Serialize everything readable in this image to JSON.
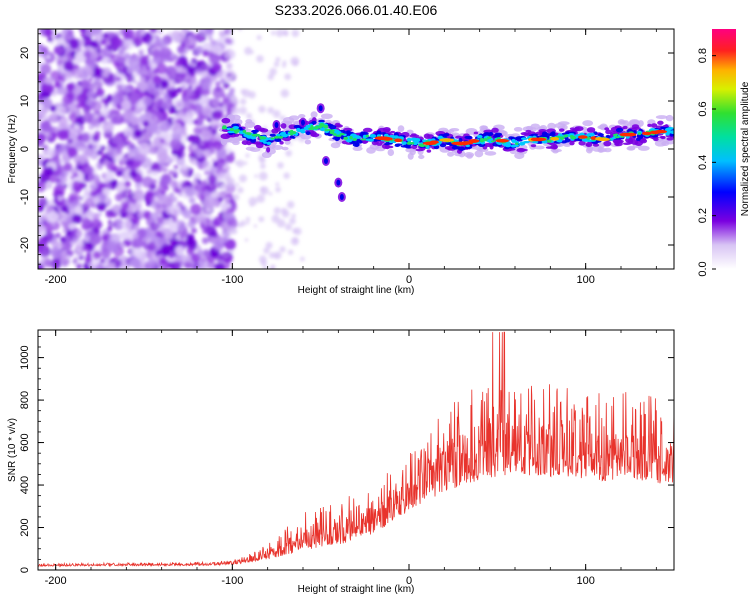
{
  "title": "S233.2026.066.01.40.E06",
  "spectrogram": {
    "type": "heatmap",
    "xlabel": "Height of straight line (km)",
    "ylabel": "Frequency (Hz)",
    "xlim": [
      -210,
      150
    ],
    "ylim": [
      -25,
      25
    ],
    "xticks": [
      -200,
      -100,
      0,
      100
    ],
    "yticks": [
      -20,
      -10,
      0,
      10,
      20
    ],
    "colorbar": {
      "label": "Normalized spectral amplitude",
      "range": [
        0.0,
        0.9
      ],
      "ticks": [
        0.0,
        0.2,
        0.4,
        0.6,
        0.8
      ]
    },
    "ridge": {
      "description": "Coherent signal track",
      "points": [
        [
          -105,
          4.5
        ],
        [
          -95,
          3.5
        ],
        [
          -85,
          2.5
        ],
        [
          -80,
          1.5
        ],
        [
          -70,
          3
        ],
        [
          -60,
          4
        ],
        [
          -50,
          5
        ],
        [
          -40,
          3
        ],
        [
          -30,
          2
        ],
        [
          -20,
          2.5
        ],
        [
          -10,
          2
        ],
        [
          0,
          1.5
        ],
        [
          10,
          1
        ],
        [
          20,
          2
        ],
        [
          30,
          1
        ],
        [
          40,
          2
        ],
        [
          50,
          2
        ],
        [
          60,
          1
        ],
        [
          70,
          2
        ],
        [
          80,
          2
        ],
        [
          90,
          2.5
        ],
        [
          100,
          2.5
        ],
        [
          110,
          2
        ],
        [
          120,
          3
        ],
        [
          130,
          3
        ],
        [
          140,
          3.5
        ],
        [
          150,
          4
        ]
      ]
    }
  },
  "snr": {
    "type": "line",
    "xlabel": "Height of straight line (km)",
    "ylabel": "SNR (10 * v/v)",
    "xlim": [
      -210,
      150
    ],
    "ylim": [
      0,
      1130
    ],
    "xticks": [
      -200,
      -100,
      0,
      100
    ],
    "yticks": [
      0,
      200,
      400,
      600,
      800,
      1000
    ],
    "color": "#e8332c",
    "envelope": [
      [
        -210,
        30
      ],
      [
        -150,
        35
      ],
      [
        -110,
        40
      ],
      [
        -95,
        60
      ],
      [
        -80,
        120
      ],
      [
        -70,
        200
      ],
      [
        -60,
        280
      ],
      [
        -50,
        300
      ],
      [
        -40,
        320
      ],
      [
        -30,
        380
      ],
      [
        -20,
        420
      ],
      [
        -10,
        480
      ],
      [
        0,
        560
      ],
      [
        10,
        640
      ],
      [
        20,
        750
      ],
      [
        30,
        820
      ],
      [
        40,
        880
      ],
      [
        50,
        950
      ],
      [
        60,
        900
      ],
      [
        70,
        880
      ],
      [
        80,
        880
      ],
      [
        90,
        860
      ],
      [
        100,
        860
      ],
      [
        110,
        850
      ],
      [
        120,
        840
      ],
      [
        130,
        860
      ],
      [
        140,
        820
      ],
      [
        150,
        760
      ]
    ],
    "baseline": [
      [
        -210,
        18
      ],
      [
        -150,
        20
      ],
      [
        -110,
        22
      ],
      [
        -95,
        30
      ],
      [
        -80,
        50
      ],
      [
        -70,
        70
      ],
      [
        -60,
        90
      ],
      [
        -50,
        110
      ],
      [
        -40,
        120
      ],
      [
        -30,
        140
      ],
      [
        -20,
        170
      ],
      [
        -10,
        220
      ],
      [
        0,
        280
      ],
      [
        10,
        330
      ],
      [
        20,
        360
      ],
      [
        30,
        400
      ],
      [
        40,
        420
      ],
      [
        50,
        440
      ],
      [
        60,
        450
      ],
      [
        70,
        440
      ],
      [
        80,
        440
      ],
      [
        90,
        440
      ],
      [
        100,
        430
      ],
      [
        110,
        420
      ],
      [
        120,
        420
      ],
      [
        130,
        420
      ],
      [
        140,
        410
      ],
      [
        150,
        400
      ]
    ]
  }
}
